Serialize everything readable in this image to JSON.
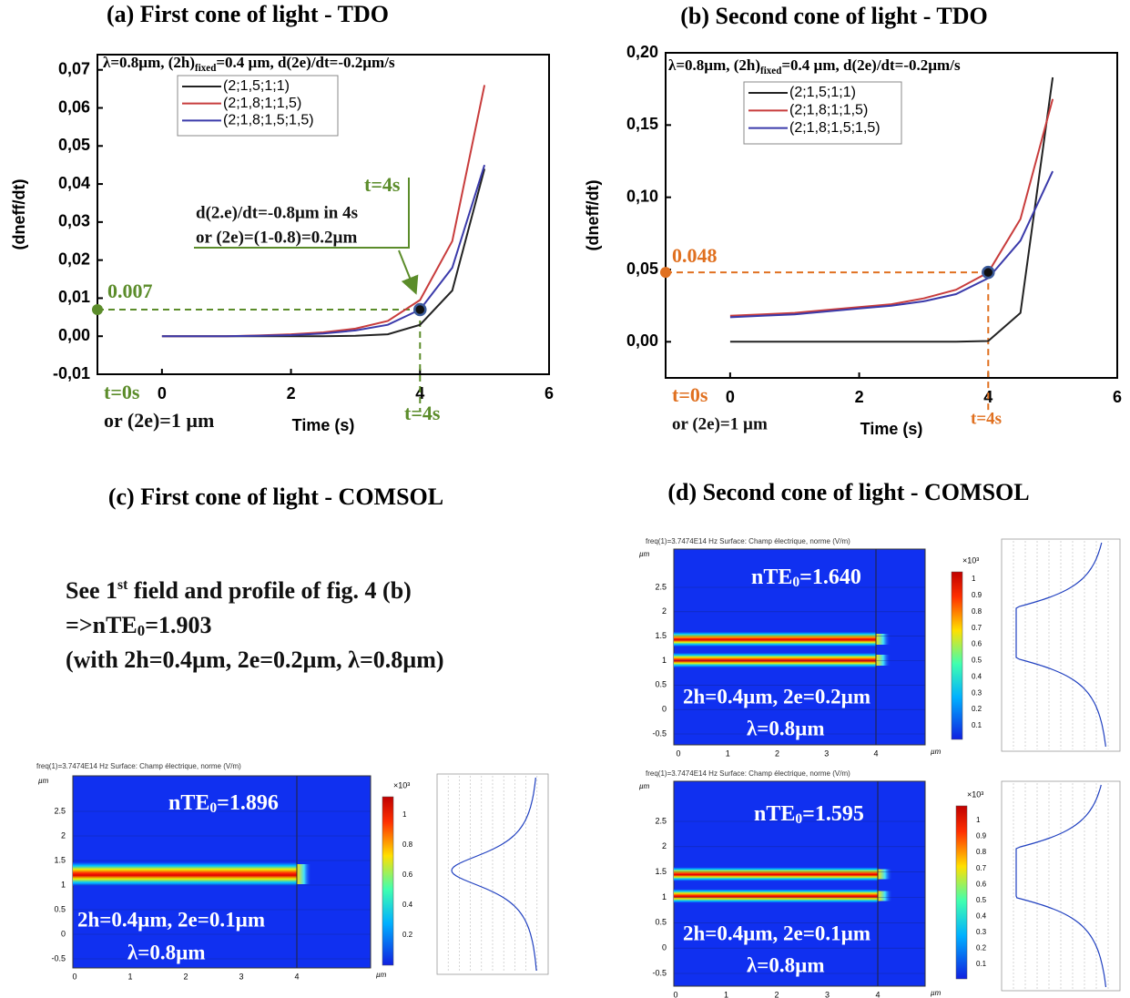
{
  "chart_data": [
    {
      "type": "line",
      "title": "(a) First cone of light - TDO",
      "params": [
        "λ=0.8µm, (2h)",
        {
          "sub": "fixed"
        },
        "=0.4 µm, d(2e)/dt=-0.2µm/s"
      ],
      "xlabel": "Time (s)",
      "ylabel": "(dneff/dt)",
      "x": [
        0,
        0.5,
        1,
        1.5,
        2,
        2.5,
        3,
        3.5,
        4,
        4.5,
        5
      ],
      "series": [
        {
          "name": "(2;1,5;1;1)",
          "color": "#222222",
          "values": [
            0,
            0,
            0,
            0,
            0,
            0,
            0.0001,
            0.0005,
            0.003,
            0.012,
            0.044
          ]
        },
        {
          "name": "(2;1,8;1;1,5)",
          "color": "#c83c3c",
          "values": [
            0,
            0,
            0,
            0.0002,
            0.0005,
            0.001,
            0.002,
            0.004,
            0.0095,
            0.025,
            0.066
          ]
        },
        {
          "name": "(2;1,8;1,5;1,5)",
          "color": "#3a3aaa",
          "values": [
            0,
            0,
            0,
            0.0001,
            0.0003,
            0.0007,
            0.0015,
            0.003,
            0.007,
            0.018,
            0.045
          ]
        }
      ],
      "xlim": [
        -1,
        6
      ],
      "xticks": [
        0,
        2,
        4,
        6
      ],
      "ylim": [
        -0.01,
        0.074
      ],
      "yticks": [
        {
          "value": -0.01,
          "label": "-0,01"
        },
        {
          "value": 0,
          "label": "0,00"
        },
        {
          "value": 0.01,
          "label": "0,01"
        },
        {
          "value": 0.02,
          "label": "0,02"
        },
        {
          "value": 0.03,
          "label": "0,03"
        },
        {
          "value": 0.04,
          "label": "0,04"
        },
        {
          "value": 0.05,
          "label": "0,05"
        },
        {
          "value": 0.06,
          "label": "0,06"
        },
        {
          "value": 0.07,
          "label": "0,07"
        }
      ],
      "legend": "upper left",
      "marker": {
        "x": 4,
        "y": 0.007,
        "color": "#5b8c2a"
      },
      "annotations": [
        {
          "text": "0.007",
          "color": "#5b8c2a"
        },
        {
          "text": "t=4s",
          "color": "#5b8c2a"
        },
        {
          "text": "d(2.e)/dt=-0.8µm in 4s",
          "color": "#111111"
        },
        {
          "text": "or (2e)=(1-0.8)=0.2µm",
          "color": "#111111"
        },
        {
          "text": "t=0s",
          "color": "#5b8c2a"
        },
        {
          "text": "or (2e)=1 µm",
          "color": "#111111"
        },
        {
          "text": "t=4s",
          "color": "#5b8c2a"
        }
      ]
    },
    {
      "type": "line",
      "title": "(b)  Second cone of light - TDO",
      "params": [
        "λ=0.8µm, (2h)",
        {
          "sub": "fixed"
        },
        "=0.4 µm, d(2e)/dt=-0.2µm/s"
      ],
      "xlabel": "Time (s)",
      "ylabel": "(dneff/dt)",
      "x": [
        0,
        0.5,
        1,
        1.5,
        2,
        2.5,
        3,
        3.5,
        4,
        4.5,
        5
      ],
      "series": [
        {
          "name": "(2;1,5;1;1)",
          "color": "#222222",
          "values": [
            0,
            0,
            0,
            0,
            0,
            0,
            0,
            0,
            0.0005,
            0.02,
            0.183
          ]
        },
        {
          "name": "(2;1,8;1;1,5)",
          "color": "#c83c3c",
          "values": [
            0.018,
            0.019,
            0.02,
            0.022,
            0.024,
            0.026,
            0.03,
            0.036,
            0.048,
            0.085,
            0.168
          ]
        },
        {
          "name": "(2;1,8;1,5;1,5)",
          "color": "#3a3aaa",
          "values": [
            0.017,
            0.018,
            0.019,
            0.021,
            0.023,
            0.025,
            0.028,
            0.033,
            0.044,
            0.07,
            0.118
          ]
        }
      ],
      "xlim": [
        -1,
        6
      ],
      "xticks": [
        0,
        2,
        4,
        6
      ],
      "ylim": [
        -0.025,
        0.2
      ],
      "yticks": [
        {
          "value": 0,
          "label": "0,00"
        },
        {
          "value": 0.05,
          "label": "0,05"
        },
        {
          "value": 0.1,
          "label": "0,10"
        },
        {
          "value": 0.15,
          "label": "0,15"
        },
        {
          "value": 0.2,
          "label": "0,20"
        }
      ],
      "legend": "upper left",
      "marker": {
        "x": 4,
        "y": 0.048,
        "color": "#e07020"
      },
      "annotations": [
        {
          "text": "0.048",
          "color": "#e07020"
        },
        {
          "text": "t=0s",
          "color": "#e07020"
        },
        {
          "text": "or (2e)=1 µm",
          "color": "#111111"
        },
        {
          "text": "t=4s",
          "color": "#e07020"
        }
      ]
    }
  ],
  "comsol": {
    "title_c": "(c) First cone of light - COMSOL",
    "title_d": "(d)  Second cone of light - COMSOL",
    "note": [
      [
        "See 1",
        {
          "sup": "st"
        },
        " field and profile of fig. 4 (b)"
      ],
      [
        "=>nTE",
        {
          "sub": "0"
        },
        "=1.903"
      ],
      [
        "(with 2h=0.4µm, 2e=0.2µm, λ=0.8µm)"
      ]
    ],
    "panels": [
      {
        "header": "freq(1)=3.7474E14 Hz   Surface: Champ électrique, norme (V/m)",
        "unit": "µm",
        "yticks": [
          "2.5",
          "2",
          "1.5",
          "1",
          "0.5",
          "0",
          "-0.5"
        ],
        "xticks": [
          "0",
          "1",
          "2",
          "3",
          "4"
        ],
        "scale": "×10³",
        "cbticks": [
          "1",
          "0.8",
          "0.6",
          "0.4",
          "0.2"
        ],
        "mode": [
          "nTE",
          {
            "sub": "0"
          },
          "=1.896"
        ],
        "geometry": "2h=0.4µm, 2e=0.1µm",
        "wavelength": "λ=0.8µm",
        "stripes": 1
      },
      {
        "header": "freq(1)=3.7474E14 Hz   Surface: Champ électrique, norme (V/m)",
        "unit": "µm",
        "yticks": [
          "2.5",
          "2",
          "1.5",
          "1",
          "0.5",
          "0",
          "-0.5"
        ],
        "xticks": [
          "0",
          "1",
          "2",
          "3",
          "4"
        ],
        "scale": "×10³",
        "cbticks": [
          "1",
          "0.9",
          "0.8",
          "0.7",
          "0.6",
          "0.5",
          "0.4",
          "0.3",
          "0.2",
          "0.1"
        ],
        "mode": [
          "nTE",
          {
            "sub": "0"
          },
          "=1.640"
        ],
        "geometry": "2h=0.4µm, 2e=0.2µm",
        "wavelength": "λ=0.8µm",
        "stripes": 2
      },
      {
        "header": "freq(1)=3.7474E14 Hz   Surface: Champ électrique, norme (V/m)",
        "unit": "µm",
        "yticks": [
          "2.5",
          "2",
          "1.5",
          "1",
          "0.5",
          "0",
          "-0.5"
        ],
        "xticks": [
          "0",
          "1",
          "2",
          "3",
          "4"
        ],
        "scale": "×10³",
        "cbticks": [
          "1",
          "0.9",
          "0.8",
          "0.7",
          "0.6",
          "0.5",
          "0.4",
          "0.3",
          "0.2",
          "0.1"
        ],
        "mode": [
          "nTE",
          {
            "sub": "0"
          },
          "=1.595"
        ],
        "geometry": "2h=0.4µm, 2e=0.1µm",
        "wavelength": "λ=0.8µm",
        "stripes": 2
      }
    ]
  }
}
